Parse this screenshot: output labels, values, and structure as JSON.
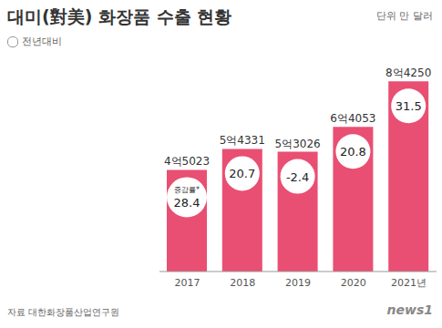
{
  "chart_data": {
    "type": "bar",
    "title": "대미(對美) 화장품 수출 현황",
    "subtitle": "단위 만 달러",
    "source": "자료 대한화장품산업연구원",
    "credit": "news1",
    "categories": [
      "2017",
      "2018",
      "2019",
      "2020",
      "2021년"
    ],
    "values": [
      45023,
      54331,
      53026,
      64053,
      84250
    ],
    "value_labels": [
      "4억5023",
      "5억4331",
      "5억3026",
      "6억4053",
      "8억4250"
    ],
    "color": "#e94f72",
    "ylim": [
      0,
      90000
    ],
    "tick_labels": "x",
    "data_labels": true,
    "change": {
      "name": "전년대비",
      "label": "증감률*",
      "values": [
        28.4,
        20.7,
        -2.4,
        20.8,
        31.5
      ]
    }
  }
}
